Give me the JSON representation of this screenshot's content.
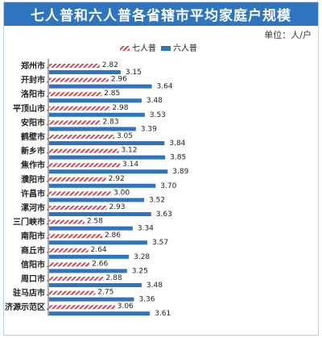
{
  "title": "七人普和六人普各省辖市平均家庭户规模",
  "unit": "单位：人/户",
  "colors": {
    "seventh": "#d0494f",
    "sixth": "#2f74bf",
    "title_bg": "#2f74bf"
  },
  "chart_data": {
    "type": "bar",
    "orientation": "horizontal",
    "legend_position": "top-center",
    "categories": [
      "郑州市",
      "开封市",
      "洛阳市",
      "平顶山市",
      "安阳市",
      "鹤壁市",
      "新乡市",
      "焦作市",
      "濮阳市",
      "许昌市",
      "漯河市",
      "三门峡市",
      "南阳市",
      "商丘市",
      "信阳市",
      "周口市",
      "驻马店市",
      "济源示范区"
    ],
    "series": [
      {
        "name": "七人普",
        "pattern": "hatched",
        "values": [
          2.82,
          2.96,
          2.85,
          2.98,
          2.83,
          3.05,
          3.12,
          3.14,
          2.92,
          3.0,
          2.93,
          2.58,
          2.86,
          2.64,
          2.66,
          2.88,
          2.75,
          3.06
        ]
      },
      {
        "name": "六人普",
        "pattern": "solid",
        "values": [
          3.15,
          3.64,
          3.48,
          3.53,
          3.39,
          3.84,
          3.85,
          3.89,
          3.7,
          3.52,
          3.63,
          3.34,
          3.57,
          3.28,
          3.25,
          3.48,
          3.36,
          3.61
        ]
      }
    ],
    "value_labels": {
      "七人普": [
        "2.82",
        "2.96",
        "2.85",
        "2.98",
        "2.83",
        "3.05",
        "3.12",
        "3.14",
        "2.92",
        "3.00",
        "2.93",
        "2.58",
        "2.86",
        "2.64",
        "2.66",
        "2.88",
        "2.75",
        "3.06"
      ],
      "六人普": [
        "3.15",
        "3.64",
        "3.48",
        "3.53",
        "3.39",
        "3.84",
        "3.85",
        "3.89",
        "3.70",
        "3.52",
        "3.63",
        "3.34",
        "3.57",
        "3.28",
        "3.25",
        "3.48",
        "3.36",
        "3.61"
      ]
    },
    "xlim": [
      0,
      4.2
    ]
  }
}
